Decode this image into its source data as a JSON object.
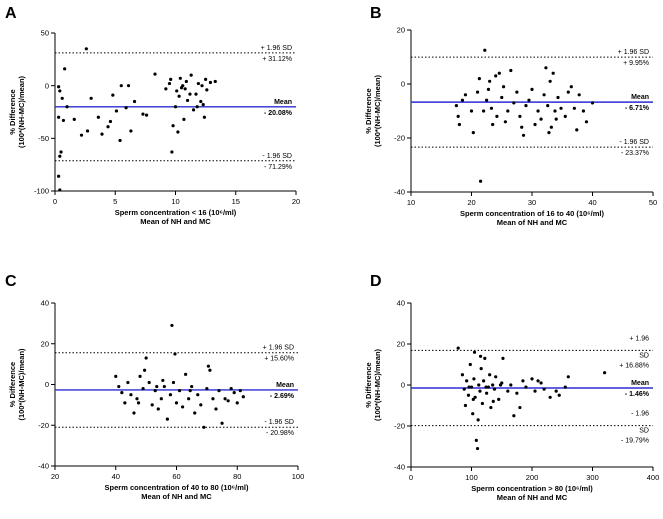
{
  "chart_data": [
    {
      "type": "scatter",
      "panel": "A",
      "title": "",
      "ylabel_line1": "% Difference",
      "ylabel_line2": "(100*(NH-MC)/mean)",
      "xlabel_line1": "Sperm concentration < 16 (10⁶/ml)",
      "xlabel_line2": "Mean of NH and MC",
      "xlim": [
        0,
        20
      ],
      "xticks": [
        0,
        5,
        10,
        15,
        20
      ],
      "ylim": [
        -100,
        50
      ],
      "yticks": [
        -100,
        -50,
        0,
        50
      ],
      "mean": -20.08,
      "upper": 31.12,
      "lower": -71.29,
      "labels": {
        "upper_sd": "+ 1.96 SD",
        "upper_val": "+ 31.12%",
        "mean_title": "Mean",
        "mean_val": "- 20.08%",
        "lower_sd": "- 1.96 SD",
        "lower_val": "- 71.29%"
      },
      "points": [
        [
          2.6,
          35
        ],
        [
          0.8,
          16
        ],
        [
          0.3,
          -1
        ],
        [
          0.4,
          -5
        ],
        [
          0.6,
          -12
        ],
        [
          0.3,
          -30
        ],
        [
          0.7,
          -33
        ],
        [
          0.5,
          -63
        ],
        [
          0.4,
          -67
        ],
        [
          0.3,
          -86
        ],
        [
          0.4,
          -99
        ],
        [
          1.0,
          -20
        ],
        [
          1.6,
          -32
        ],
        [
          2.2,
          -47
        ],
        [
          2.7,
          -43
        ],
        [
          3.0,
          -12
        ],
        [
          3.6,
          -30
        ],
        [
          3.9,
          -46
        ],
        [
          4.4,
          -39
        ],
        [
          4.6,
          -34
        ],
        [
          4.8,
          -9
        ],
        [
          5.1,
          -24
        ],
        [
          5.4,
          -52
        ],
        [
          5.5,
          0
        ],
        [
          5.9,
          -21
        ],
        [
          6.1,
          0
        ],
        [
          6.3,
          -43
        ],
        [
          6.6,
          -15
        ],
        [
          7.3,
          -27
        ],
        [
          7.6,
          -28
        ],
        [
          8.3,
          11
        ],
        [
          9.2,
          -3
        ],
        [
          9.5,
          2
        ],
        [
          9.6,
          6
        ],
        [
          9.7,
          -63
        ],
        [
          9.8,
          -38
        ],
        [
          10.0,
          -20
        ],
        [
          10.1,
          -5
        ],
        [
          10.2,
          -44
        ],
        [
          10.3,
          -10
        ],
        [
          10.4,
          7
        ],
        [
          10.5,
          -2
        ],
        [
          10.6,
          0
        ],
        [
          10.7,
          -32
        ],
        [
          10.8,
          -3
        ],
        [
          10.9,
          4
        ],
        [
          11.0,
          -14
        ],
        [
          11.2,
          -8
        ],
        [
          11.3,
          10
        ],
        [
          11.5,
          -23
        ],
        [
          11.7,
          -8
        ],
        [
          11.8,
          -20
        ],
        [
          11.9,
          2
        ],
        [
          12.1,
          -15
        ],
        [
          12.2,
          0
        ],
        [
          12.3,
          -18
        ],
        [
          12.4,
          -30
        ],
        [
          12.5,
          6
        ],
        [
          12.6,
          -4
        ],
        [
          12.9,
          3
        ],
        [
          13.3,
          4
        ]
      ]
    },
    {
      "type": "scatter",
      "panel": "B",
      "title": "",
      "ylabel_line1": "% Difference",
      "ylabel_line2": "(100*(NH-MC)/mean)",
      "xlabel_line1": "Sperm concentration of 16 to 40 (10⁶/ml)",
      "xlabel_line2": "Mean of NH and MC",
      "xlim": [
        10,
        50
      ],
      "xticks": [
        10,
        20,
        30,
        40,
        50
      ],
      "ylim": [
        -40,
        20
      ],
      "yticks": [
        -40,
        -20,
        0,
        20
      ],
      "mean": -6.71,
      "upper": 9.95,
      "lower": -23.37,
      "labels": {
        "upper_sd": "+ 1.96 SD",
        "upper_val": "+ 9.95%",
        "mean_title": "Mean",
        "mean_val": "- 6.71%",
        "lower_sd": "- 1.96 SD",
        "lower_val": "- 23.37%"
      },
      "points": [
        [
          22.2,
          12.5
        ],
        [
          21.5,
          -36
        ],
        [
          17.5,
          -8
        ],
        [
          17.8,
          -12
        ],
        [
          18.0,
          -15
        ],
        [
          18.5,
          -6
        ],
        [
          19.0,
          -4
        ],
        [
          20.0,
          -10
        ],
        [
          20.3,
          -18
        ],
        [
          21.0,
          -3
        ],
        [
          21.3,
          2
        ],
        [
          22.0,
          -10
        ],
        [
          22.5,
          -6
        ],
        [
          22.8,
          -2
        ],
        [
          23.0,
          1
        ],
        [
          23.3,
          -9
        ],
        [
          23.5,
          -15
        ],
        [
          24.0,
          3
        ],
        [
          24.2,
          -12
        ],
        [
          24.6,
          4
        ],
        [
          25.0,
          -5
        ],
        [
          25.3,
          -1
        ],
        [
          25.6,
          -14
        ],
        [
          26.0,
          -10
        ],
        [
          26.5,
          5
        ],
        [
          27.0,
          -7
        ],
        [
          27.5,
          -3
        ],
        [
          28.0,
          -12
        ],
        [
          28.3,
          -16
        ],
        [
          28.6,
          -19
        ],
        [
          29.0,
          -8
        ],
        [
          29.5,
          -6
        ],
        [
          30.0,
          -2
        ],
        [
          30.5,
          -15
        ],
        [
          31.0,
          -10
        ],
        [
          31.5,
          -13
        ],
        [
          32.0,
          -4
        ],
        [
          32.3,
          6
        ],
        [
          32.6,
          -8
        ],
        [
          33.0,
          1
        ],
        [
          33.2,
          -16
        ],
        [
          33.5,
          4
        ],
        [
          34.0,
          -13
        ],
        [
          34.3,
          -5
        ],
        [
          34.8,
          -9
        ],
        [
          35.5,
          -12
        ],
        [
          36.0,
          -3
        ],
        [
          36.5,
          -1
        ],
        [
          37.0,
          -9
        ],
        [
          37.4,
          -17
        ],
        [
          37.8,
          -4
        ],
        [
          38.5,
          -10
        ],
        [
          39.0,
          -14
        ],
        [
          40.0,
          -7
        ],
        [
          33.8,
          -10
        ],
        [
          32.8,
          -18
        ]
      ]
    },
    {
      "type": "scatter",
      "panel": "C",
      "title": "",
      "ylabel_line1": "% Difference",
      "ylabel_line2": "(100*(NH-MC)/mean)",
      "xlabel_line1": "Sperm concentration of 40 to 80 (10⁶/ml)",
      "xlabel_line2": "Mean of NH and MC",
      "xlim": [
        20,
        100
      ],
      "xticks": [
        20,
        40,
        60,
        80,
        100
      ],
      "ylim": [
        -40,
        40
      ],
      "yticks": [
        -40,
        -20,
        0,
        20,
        40
      ],
      "mean": -2.69,
      "upper": 15.6,
      "lower": -20.98,
      "labels": {
        "upper_sd": "+ 1.96 SD",
        "upper_val": "+ 15.60%",
        "mean_title": "Mean",
        "mean_val": "- 2.69%",
        "lower_sd": "- 1.96 SD",
        "lower_val": "- 20.98%"
      },
      "points": [
        [
          58.5,
          29
        ],
        [
          59.5,
          15
        ],
        [
          40,
          4
        ],
        [
          41,
          -1
        ],
        [
          42,
          -4
        ],
        [
          43,
          -9
        ],
        [
          44,
          1
        ],
        [
          45,
          -5
        ],
        [
          46,
          -14
        ],
        [
          47,
          -7
        ],
        [
          48,
          4
        ],
        [
          49,
          -2
        ],
        [
          49.5,
          7
        ],
        [
          50,
          13
        ],
        [
          51,
          1
        ],
        [
          52,
          -10
        ],
        [
          53,
          -3
        ],
        [
          54,
          -12
        ],
        [
          55,
          -7
        ],
        [
          55.5,
          2
        ],
        [
          56,
          -1
        ],
        [
          57,
          -17
        ],
        [
          58,
          -5
        ],
        [
          59,
          1
        ],
        [
          60,
          -9
        ],
        [
          61,
          -3
        ],
        [
          62,
          -11
        ],
        [
          63,
          5
        ],
        [
          64,
          -7
        ],
        [
          65,
          -1
        ],
        [
          66,
          -14
        ],
        [
          67,
          -5
        ],
        [
          68,
          -10
        ],
        [
          69,
          -21
        ],
        [
          70,
          -2
        ],
        [
          70.5,
          9
        ],
        [
          71,
          7
        ],
        [
          72,
          -7
        ],
        [
          73,
          -12
        ],
        [
          74,
          -3
        ],
        [
          75,
          -19
        ],
        [
          76,
          -7
        ],
        [
          77,
          -8
        ],
        [
          78,
          -2
        ],
        [
          79,
          -4
        ],
        [
          80,
          -9
        ],
        [
          81,
          -3
        ],
        [
          82,
          -6
        ],
        [
          64.5,
          -3
        ],
        [
          53.5,
          -1
        ],
        [
          47.5,
          -9
        ]
      ]
    },
    {
      "type": "scatter",
      "panel": "D",
      "title": "",
      "ylabel_line1": "% Difference",
      "ylabel_line2": "(100*(NH-MC)/mean)",
      "xlabel_line1": "Sperm concentration > 80 (10⁶/ml)",
      "xlabel_line2": "Mean of NH and MC",
      "xlim": [
        0,
        400
      ],
      "xticks": [
        0,
        100,
        200,
        300,
        400
      ],
      "ylim": [
        -40,
        40
      ],
      "yticks": [
        -40,
        -20,
        0,
        20,
        40
      ],
      "mean": -1.46,
      "upper": 16.88,
      "lower": -19.79,
      "labels": {
        "upper_sd_a": "+ 1.96",
        "upper_sd_b": "SD",
        "upper_val": "+ 16.88%",
        "mean_title": "Mean",
        "mean_val": "- 1.46%",
        "lower_sd_a": "- 1.96",
        "lower_sd_b": "SD",
        "lower_val": "- 19.79%"
      },
      "points": [
        [
          78,
          18
        ],
        [
          85,
          5
        ],
        [
          88,
          -2
        ],
        [
          90,
          -10
        ],
        [
          92,
          2
        ],
        [
          95,
          -5
        ],
        [
          98,
          10
        ],
        [
          100,
          -1
        ],
        [
          102,
          -14
        ],
        [
          104,
          3
        ],
        [
          105,
          16
        ],
        [
          106,
          -6
        ],
        [
          108,
          -27
        ],
        [
          110,
          -31
        ],
        [
          112,
          0
        ],
        [
          114,
          -3
        ],
        [
          116,
          8
        ],
        [
          118,
          -9
        ],
        [
          120,
          2
        ],
        [
          122,
          13
        ],
        [
          125,
          -4
        ],
        [
          128,
          -1
        ],
        [
          130,
          5
        ],
        [
          132,
          -11
        ],
        [
          135,
          0
        ],
        [
          138,
          -2
        ],
        [
          140,
          4
        ],
        [
          145,
          -7
        ],
        [
          150,
          1
        ],
        [
          152,
          13
        ],
        [
          160,
          -3
        ],
        [
          165,
          0
        ],
        [
          170,
          -15
        ],
        [
          175,
          -4
        ],
        [
          180,
          -11
        ],
        [
          185,
          2
        ],
        [
          190,
          -1
        ],
        [
          200,
          3
        ],
        [
          205,
          -3
        ],
        [
          210,
          2
        ],
        [
          215,
          1
        ],
        [
          220,
          -2
        ],
        [
          230,
          -6
        ],
        [
          240,
          -3
        ],
        [
          245,
          -5
        ],
        [
          255,
          -1
        ],
        [
          260,
          4
        ],
        [
          320,
          6
        ],
        [
          96,
          -1
        ],
        [
          103,
          -7
        ],
        [
          111,
          -17
        ],
        [
          124,
          -1
        ],
        [
          136,
          -8
        ],
        [
          148,
          0
        ],
        [
          115,
          14
        ]
      ]
    }
  ]
}
